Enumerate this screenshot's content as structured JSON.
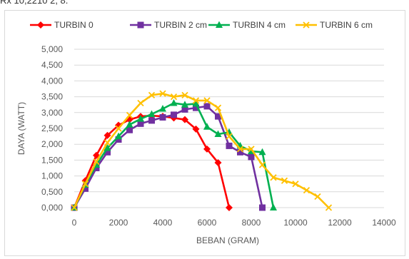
{
  "header_fragment": "Rx 10,2210 2, 8.",
  "chart_data": {
    "type": "line",
    "xlabel": "BEBAN (GRAM)",
    "ylabel": "DAYA (WATT)",
    "xlim": [
      0,
      14000
    ],
    "ylim": [
      0,
      5
    ],
    "xticks": [
      "0",
      "2000",
      "4000",
      "6000",
      "8000",
      "10000",
      "12000",
      "14000"
    ],
    "yticks": [
      "0,000",
      "0,500",
      "1,000",
      "1,500",
      "2,000",
      "2,500",
      "3,000",
      "3,500",
      "4,000",
      "4,500",
      "5,000"
    ],
    "grid": "horizontal",
    "legend_position": "top",
    "series": [
      {
        "name": "TURBIN 0",
        "color": "#FF0000",
        "marker": "diamond",
        "x": [
          0,
          500,
          1000,
          1500,
          2000,
          2500,
          3000,
          3500,
          4000,
          4500,
          5000,
          5500,
          6000,
          6500,
          7000
        ],
        "y": [
          0.0,
          0.85,
          1.65,
          2.28,
          2.6,
          2.78,
          2.88,
          2.9,
          2.88,
          2.83,
          2.78,
          2.48,
          1.85,
          1.42,
          0.0
        ]
      },
      {
        "name": "TURBIN 2 cm",
        "color": "#7030A0",
        "marker": "square",
        "x": [
          0,
          500,
          1000,
          1500,
          2000,
          2500,
          3000,
          3500,
          4000,
          4500,
          5000,
          5500,
          6000,
          6500,
          7000,
          7500,
          8000,
          8500
        ],
        "y": [
          0.0,
          0.6,
          1.25,
          1.75,
          2.15,
          2.45,
          2.65,
          2.75,
          2.85,
          2.93,
          3.1,
          3.15,
          3.2,
          2.88,
          1.95,
          1.75,
          1.6,
          0.0
        ]
      },
      {
        "name": "TURBIN 4 cm",
        "color": "#00B050",
        "marker": "triangle",
        "x": [
          0,
          500,
          1000,
          1500,
          2000,
          2500,
          3000,
          3500,
          4000,
          4500,
          5000,
          5500,
          6000,
          6500,
          7000,
          7500,
          8000,
          8500,
          9000
        ],
        "y": [
          0.0,
          0.72,
          1.35,
          1.88,
          2.25,
          2.62,
          2.8,
          2.95,
          3.12,
          3.3,
          3.25,
          3.28,
          2.55,
          2.32,
          2.38,
          1.95,
          1.78,
          1.75,
          0.0
        ]
      },
      {
        "name": "TURBIN 6 cm",
        "color": "#FFC000",
        "marker": "x",
        "x": [
          0,
          500,
          1000,
          1500,
          2000,
          2500,
          3000,
          3500,
          4000,
          4500,
          5000,
          5500,
          6000,
          6500,
          7000,
          7500,
          8000,
          8500,
          9000,
          9500,
          10000,
          10500,
          11000,
          11500
        ],
        "y": [
          0.0,
          0.75,
          1.45,
          2.05,
          2.5,
          2.92,
          3.3,
          3.55,
          3.6,
          3.5,
          3.55,
          3.38,
          3.38,
          3.15,
          2.25,
          1.85,
          1.85,
          1.35,
          0.95,
          0.85,
          0.75,
          0.55,
          0.35,
          0.0
        ]
      }
    ]
  }
}
